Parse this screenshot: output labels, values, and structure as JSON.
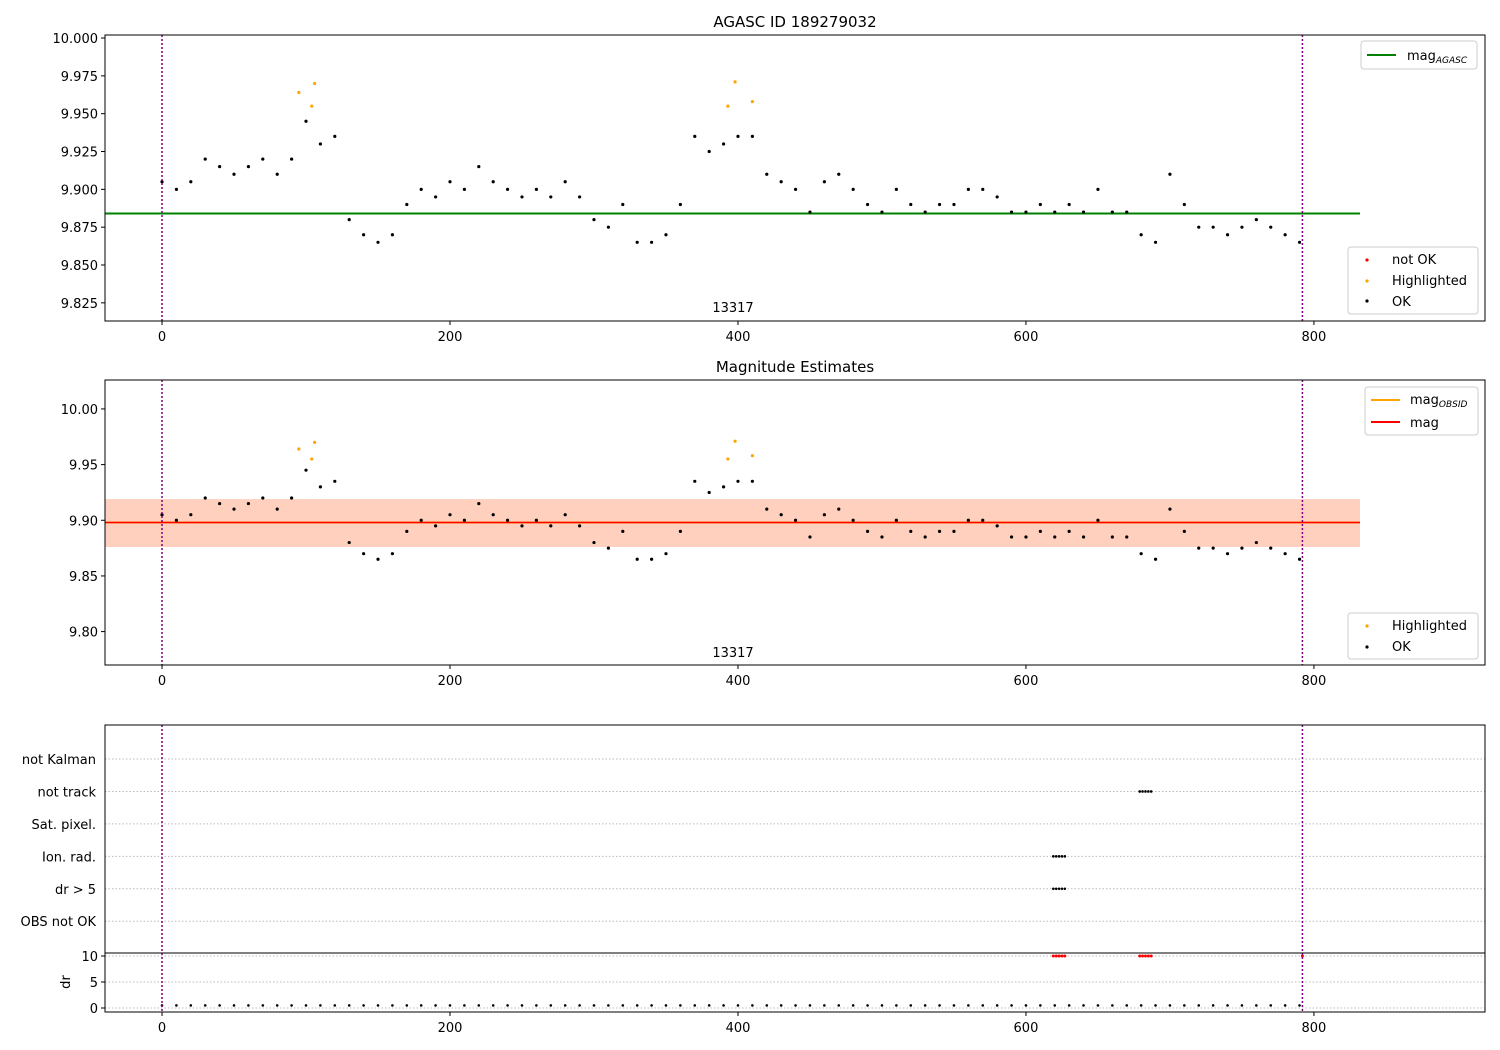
{
  "chart_data": [
    {
      "type": "scatter",
      "title": "AGASC ID 189279032",
      "xlim": [
        -39.6,
        918.8
      ],
      "ylim": [
        9.813,
        10.002
      ],
      "xticks": [
        "0",
        "200",
        "400",
        "600",
        "800"
      ],
      "yticks": [
        "9.825",
        "9.850",
        "9.875",
        "9.900",
        "9.925",
        "9.950",
        "9.975",
        "10.000"
      ],
      "annotation": "13317",
      "hline": {
        "name": "mag_AGASC",
        "value": 9.884,
        "color": "#008000"
      },
      "legend_top": {
        "main": "mag",
        "sub": "AGASC"
      },
      "legend_bottom": [
        "not OK",
        "Highlighted",
        "OK"
      ]
    },
    {
      "type": "scatter",
      "title": "Magnitude Estimates",
      "xlim": [
        -39.6,
        918.8
      ],
      "ylim": [
        9.77,
        10.026
      ],
      "xticks": [
        "0",
        "200",
        "400",
        "600",
        "800"
      ],
      "yticks": [
        "9.80",
        "9.85",
        "9.90",
        "9.95",
        "10.00"
      ],
      "annotation": "13317",
      "mag": 9.898,
      "mag_obsid": 9.898,
      "band": [
        9.876,
        9.919
      ],
      "legend_top": [
        {
          "main": "mag",
          "sub": "OBSID",
          "color": "#ffa500"
        },
        {
          "main": "mag",
          "sub": "",
          "color": "#ff0000"
        }
      ],
      "legend_bottom": [
        "Highlighted",
        "OK"
      ]
    },
    {
      "type": "scatter",
      "categories": [
        "OBS not OK",
        "dr > 5",
        "Ion. rad.",
        "Sat. pixel.",
        "not track",
        "not Kalman"
      ],
      "flags": [
        {
          "category": "Ion. rad.",
          "x": [
            619,
            621,
            623,
            625,
            627
          ]
        },
        {
          "category": "dr > 5",
          "x": [
            619,
            621,
            623,
            625,
            627
          ]
        },
        {
          "category": "not track",
          "x": [
            679,
            681,
            683,
            685,
            687
          ]
        }
      ]
    },
    {
      "type": "scatter",
      "ylabel": "dr",
      "yticks": [
        "0",
        "5",
        "10"
      ],
      "ylim": [
        -0.77,
        10.58
      ],
      "xticks": [
        "0",
        "200",
        "400",
        "600",
        "800"
      ],
      "dr_baseline": 0.5,
      "dr_high_x": [
        619,
        621,
        623,
        625,
        627,
        679,
        681,
        683,
        685,
        687,
        792
      ]
    }
  ],
  "obs_lines": [
    0,
    792
  ],
  "colors": {
    "ok": "#000000",
    "highlighted": "#ffa500",
    "not_ok": "#ff0000",
    "obs": "#800080"
  },
  "series": {
    "x": [
      0,
      10,
      20,
      30,
      40,
      50,
      60,
      70,
      80,
      90,
      100,
      110,
      120,
      130,
      140,
      150,
      160,
      170,
      180,
      190,
      200,
      210,
      220,
      230,
      240,
      250,
      260,
      270,
      280,
      290,
      300,
      310,
      320,
      330,
      340,
      350,
      360,
      370,
      380,
      390,
      400,
      410,
      420,
      430,
      440,
      450,
      460,
      470,
      480,
      490,
      500,
      510,
      520,
      530,
      540,
      550,
      560,
      570,
      580,
      590,
      600,
      610,
      620,
      630,
      640,
      650,
      660,
      670,
      680,
      690,
      700,
      710,
      720,
      730,
      740,
      750,
      760,
      770,
      780,
      790
    ],
    "mag": [
      9.905,
      9.9,
      9.905,
      9.92,
      9.915,
      9.91,
      9.915,
      9.92,
      9.91,
      9.92,
      9.945,
      9.93,
      9.935,
      9.88,
      9.87,
      9.865,
      9.87,
      9.89,
      9.9,
      9.895,
      9.905,
      9.9,
      9.915,
      9.905,
      9.9,
      9.895,
      9.9,
      9.895,
      9.905,
      9.895,
      9.88,
      9.875,
      9.89,
      9.865,
      9.865,
      9.87,
      9.89,
      9.935,
      9.925,
      9.93,
      9.935,
      9.935,
      9.91,
      9.905,
      9.9,
      9.885,
      9.905,
      9.91,
      9.9,
      9.89,
      9.885,
      9.9,
      9.89,
      9.885,
      9.89,
      9.89,
      9.9,
      9.9,
      9.895,
      9.885,
      9.885,
      9.89,
      9.885,
      9.89,
      9.885,
      9.9,
      9.885,
      9.885,
      9.87,
      9.865,
      9.91,
      9.89,
      9.875,
      9.875,
      9.87,
      9.875,
      9.88,
      9.875,
      9.87,
      9.865
    ]
  },
  "highlighted": {
    "x": [
      95,
      104,
      106,
      393,
      398,
      410
    ],
    "mag": [
      9.964,
      9.955,
      9.97,
      9.955,
      9.971,
      9.958
    ]
  }
}
